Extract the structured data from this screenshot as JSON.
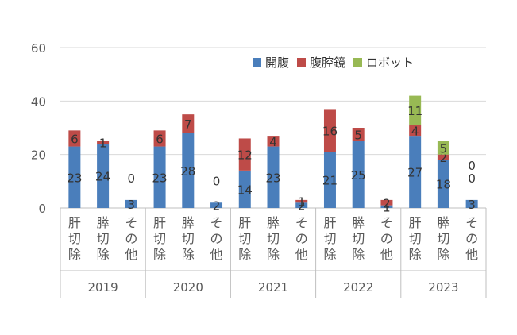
{
  "chart_data": {
    "type": "bar",
    "stacked": true,
    "ylim": [
      0,
      60
    ],
    "yticks": [
      0,
      20,
      40,
      60
    ],
    "grid": true,
    "legend_position": "top-right",
    "years": [
      "2019",
      "2020",
      "2021",
      "2022",
      "2023"
    ],
    "categories_per_year": [
      "肝切除",
      "膵切除",
      "その他"
    ],
    "categories": [
      "2019 肝切除",
      "2019 膵切除",
      "2019 その他",
      "2020 肝切除",
      "2020 膵切除",
      "2020 その他",
      "2021 肝切除",
      "2021 膵切除",
      "2021 その他",
      "2022 肝切除",
      "2022 膵切除",
      "2022 その他",
      "2023 肝切除",
      "2023 膵切除",
      "2023 その他"
    ],
    "series": [
      {
        "name": "開腹",
        "color": "#4a7ebb",
        "values": [
          23,
          24,
          3,
          23,
          28,
          2,
          14,
          23,
          2,
          21,
          25,
          1,
          27,
          18,
          3
        ]
      },
      {
        "name": "腹腔鏡",
        "color": "#be4b48",
        "values": [
          6,
          1,
          0,
          6,
          7,
          0,
          12,
          4,
          1,
          16,
          5,
          2,
          4,
          2,
          0
        ]
      },
      {
        "name": "ロボット",
        "color": "#98b954",
        "values": [
          null,
          null,
          null,
          null,
          null,
          null,
          null,
          null,
          null,
          null,
          null,
          null,
          11,
          5,
          0
        ]
      }
    ]
  }
}
